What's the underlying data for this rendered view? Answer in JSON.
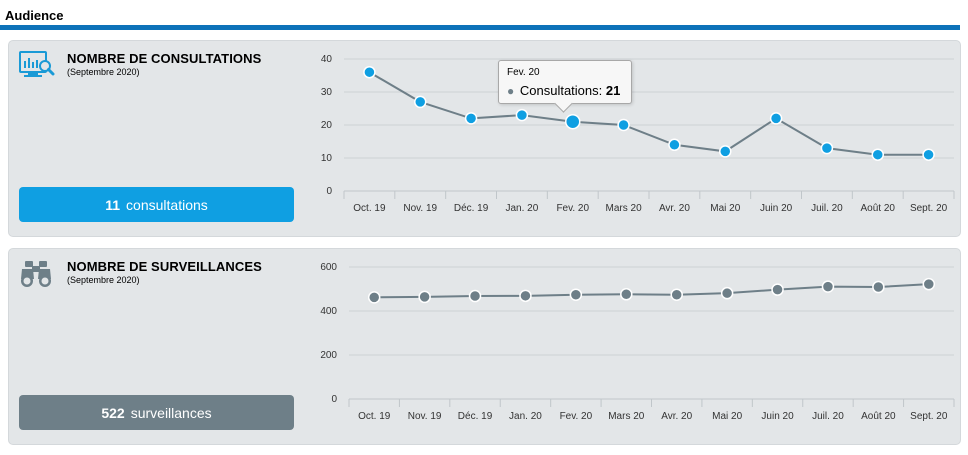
{
  "section": {
    "title": "Audience"
  },
  "consultations": {
    "heading": "NOMBRE DE CONSULTATIONS",
    "period": "(Septembre 2020)",
    "stat_value": "11",
    "stat_label": "consultations",
    "icon": "monitor-chart-search-icon",
    "colors": {
      "line": "#6e7f88",
      "marker": "#0f9fe2",
      "box": "#0f9fe2"
    },
    "tooltip": {
      "title": "Fev. 20",
      "series_label": "Consultations:",
      "value": "21"
    }
  },
  "surveillances": {
    "heading": "NOMBRE DE SURVEILLANCES",
    "period": "(Septembre 2020)",
    "stat_value": "522",
    "stat_label": "surveillances",
    "icon": "binoculars-icon",
    "colors": {
      "line": "#6e7f88",
      "marker": "#6e7f88",
      "box": "#6e7f88"
    }
  },
  "chart_data": [
    {
      "type": "line",
      "title": "NOMBRE DE CONSULTATIONS",
      "categories": [
        "Oct. 19",
        "Nov. 19",
        "Déc. 19",
        "Jan. 20",
        "Fev. 20",
        "Mars 20",
        "Avr. 20",
        "Mai 20",
        "Juin 20",
        "Juil. 20",
        "Août 20",
        "Sept. 20"
      ],
      "series": [
        {
          "name": "Consultations",
          "values": [
            36,
            27,
            22,
            23,
            21,
            20,
            14,
            12,
            22,
            13,
            11,
            11
          ]
        }
      ],
      "yticks": [
        0,
        10,
        20,
        30,
        40
      ],
      "ylim": [
        0,
        40
      ],
      "highlight_index": 4
    },
    {
      "type": "line",
      "title": "NOMBRE DE SURVEILLANCES",
      "categories": [
        "Oct. 19",
        "Nov. 19",
        "Déc. 19",
        "Jan. 20",
        "Fev. 20",
        "Mars 20",
        "Avr. 20",
        "Mai 20",
        "Juin 20",
        "Juil. 20",
        "Août 20",
        "Sept. 20"
      ],
      "series": [
        {
          "name": "Surveillances",
          "values": [
            462,
            464,
            468,
            469,
            474,
            476,
            474,
            481,
            497,
            511,
            509,
            522
          ]
        }
      ],
      "yticks": [
        0,
        200,
        400,
        600
      ],
      "ylim": [
        0,
        600
      ]
    }
  ]
}
